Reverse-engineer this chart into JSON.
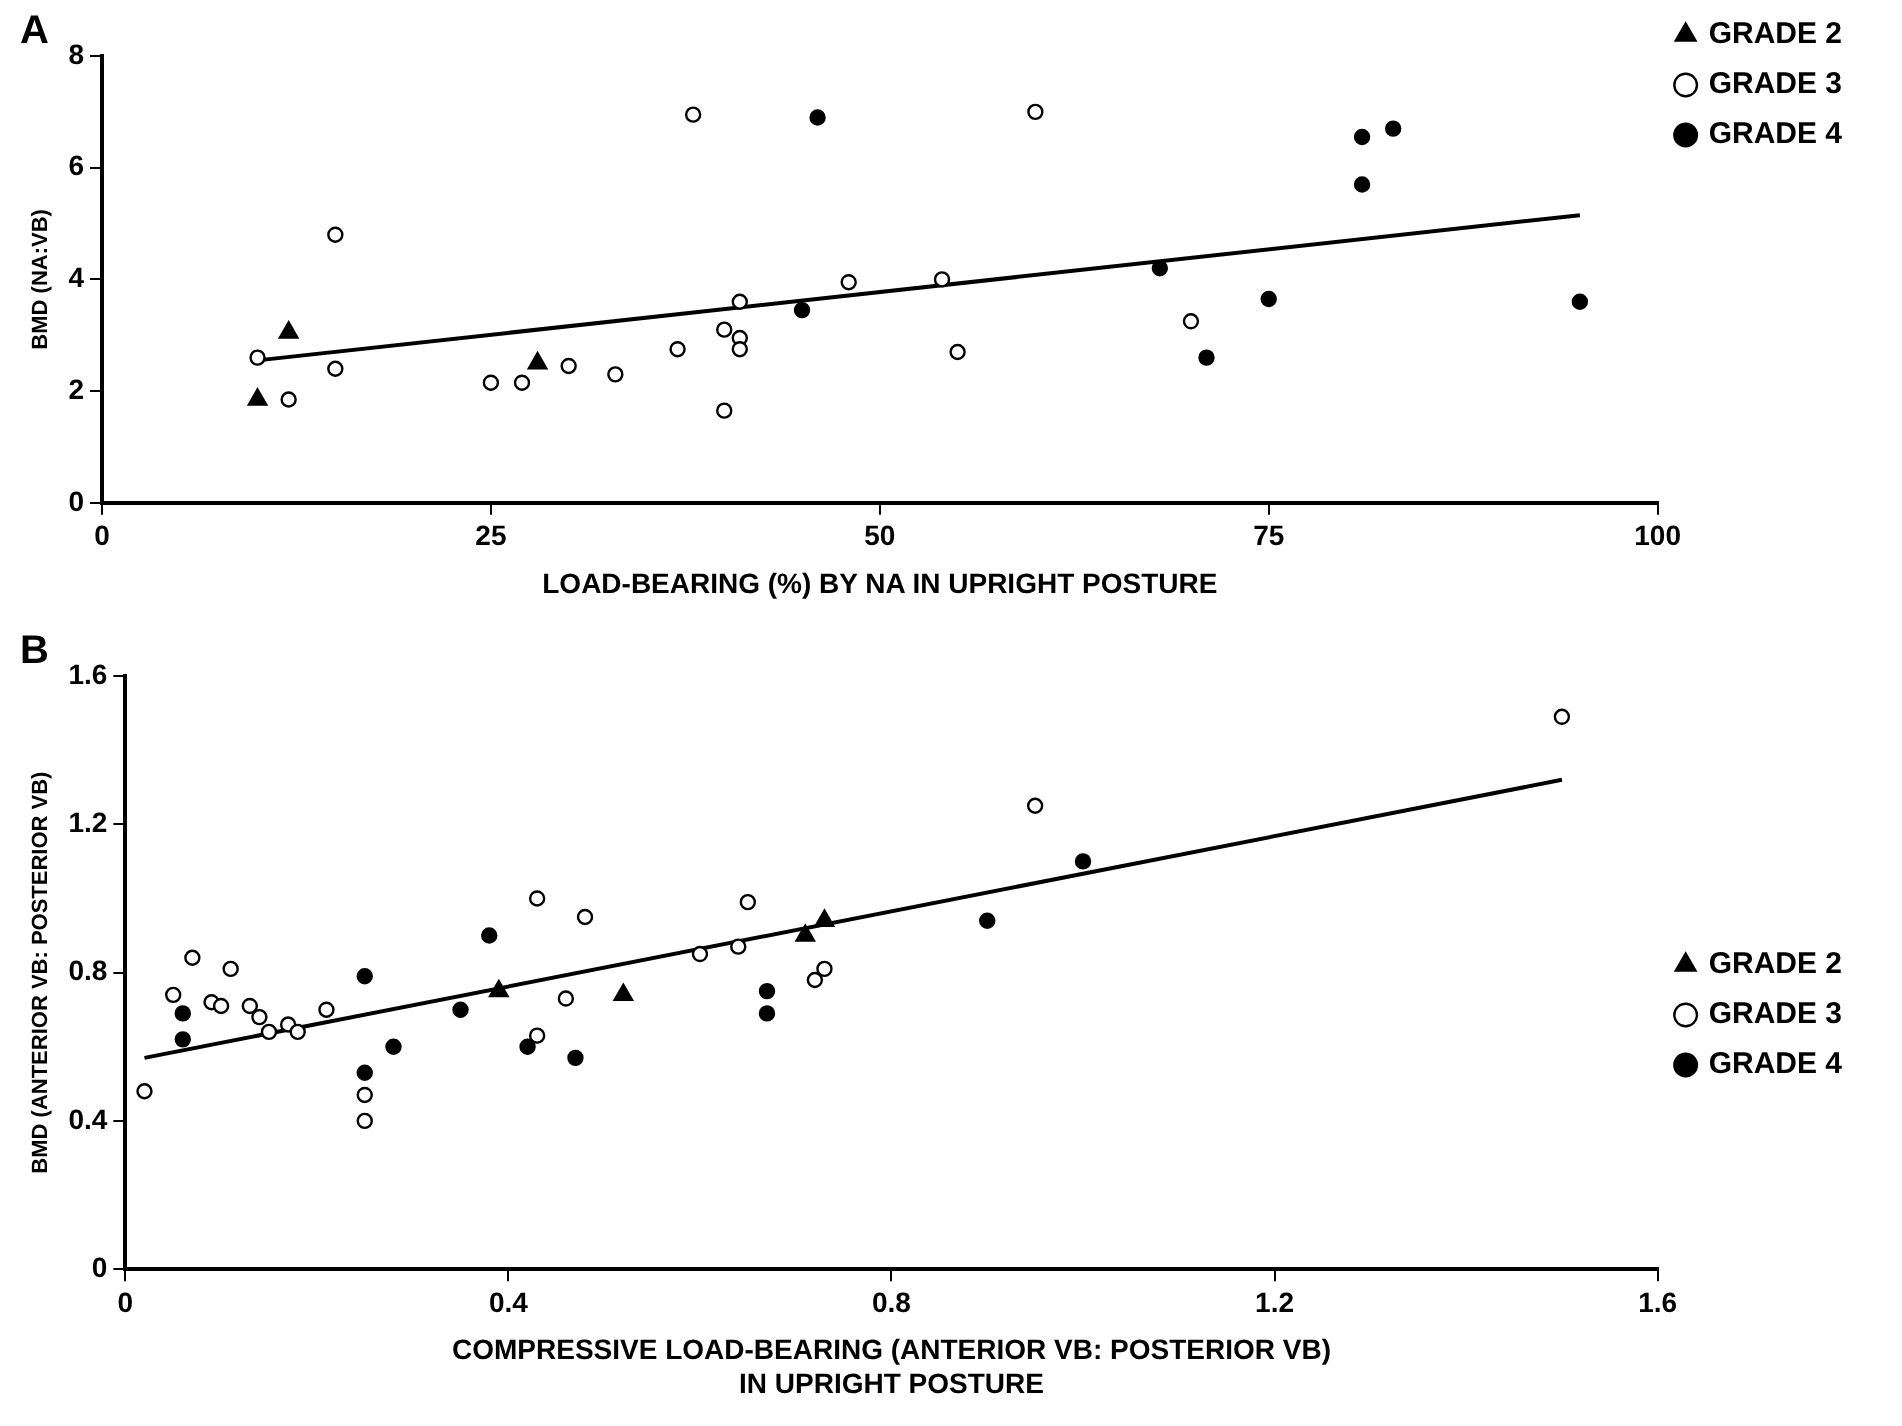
{
  "chart_data": [
    {
      "type": "scatter",
      "title": "A",
      "xlabel": "LOAD-BEARING (%) BY NA IN UPRIGHT POSTURE",
      "ylabel": "BMD (NA:VB)",
      "xlim": [
        0,
        100
      ],
      "xticks": [
        0,
        25,
        50,
        75,
        100
      ],
      "ylim": [
        0,
        8
      ],
      "yticks": [
        0,
        2,
        4,
        6,
        8
      ],
      "grid": false,
      "legend": "top right",
      "series": [
        {
          "name": "GRADE 2",
          "color": "#000000",
          "marker": "triangle",
          "x": [
            10,
            12,
            28
          ],
          "values": [
            1.85,
            3.05,
            2.5
          ]
        },
        {
          "name": "GRADE 3",
          "color": "#ffffff",
          "marker": "circle",
          "x": [
            10,
            12,
            15,
            15,
            25,
            27,
            30,
            33,
            37,
            38,
            40,
            40,
            41,
            41,
            41,
            48,
            54,
            55,
            60,
            70
          ],
          "values": [
            2.6,
            1.85,
            4.8,
            2.4,
            2.15,
            2.15,
            2.45,
            2.3,
            2.75,
            6.95,
            1.65,
            3.1,
            2.95,
            2.75,
            3.6,
            3.95,
            4.0,
            2.7,
            7.0,
            3.25
          ]
        },
        {
          "name": "GRADE 4",
          "color": "#000000",
          "marker": "circle",
          "x": [
            45,
            46,
            68,
            71,
            75,
            81,
            81,
            83,
            95
          ],
          "values": [
            3.45,
            6.9,
            4.2,
            2.6,
            3.65,
            6.55,
            5.7,
            6.7,
            3.6
          ]
        },
        {
          "type": "line",
          "color": "#000000",
          "marker": "none",
          "x": [
            10,
            95
          ],
          "values": [
            2.55,
            5.15
          ]
        }
      ]
    },
    {
      "type": "scatter",
      "title": "B",
      "xlabel": "COMPRESSIVE LOAD-BEARING (ANTERIOR VB: POSTERIOR VB)\nIN UPRIGHT POSTURE",
      "ylabel": "BMD (ANTERIOR VB: POSTERIOR VB)",
      "xlim": [
        0,
        1.6
      ],
      "xticks": [
        0,
        0.4,
        0.8,
        1.2,
        1.6
      ],
      "ylim": [
        0,
        1.6
      ],
      "yticks": [
        0,
        0.4,
        0.8,
        1.2,
        1.6
      ],
      "grid": false,
      "legend": "right",
      "series": [
        {
          "name": "GRADE 2",
          "color": "#000000",
          "marker": "triangle",
          "x": [
            0.39,
            0.52,
            0.71,
            0.73
          ],
          "values": [
            0.75,
            0.74,
            0.9,
            0.94
          ]
        },
        {
          "name": "GRADE 3",
          "color": "#ffffff",
          "marker": "circle",
          "x": [
            0.02,
            0.05,
            0.07,
            0.09,
            0.1,
            0.11,
            0.13,
            0.14,
            0.15,
            0.17,
            0.18,
            0.21,
            0.25,
            0.25,
            0.43,
            0.43,
            0.46,
            0.48,
            0.6,
            0.64,
            0.65,
            0.72,
            0.73,
            0.95,
            1.5
          ],
          "values": [
            0.48,
            0.74,
            0.84,
            0.72,
            0.71,
            0.81,
            0.71,
            0.68,
            0.64,
            0.66,
            0.64,
            0.7,
            0.47,
            0.4,
            1.0,
            0.63,
            0.73,
            0.95,
            0.85,
            0.87,
            0.99,
            0.78,
            0.81,
            1.25,
            1.49
          ]
        },
        {
          "name": "GRADE 4",
          "color": "#000000",
          "marker": "circle",
          "x": [
            0.06,
            0.06,
            0.25,
            0.25,
            0.28,
            0.35,
            0.38,
            0.42,
            0.47,
            0.67,
            0.67,
            0.9,
            1.0
          ],
          "values": [
            0.69,
            0.62,
            0.79,
            0.53,
            0.6,
            0.7,
            0.9,
            0.6,
            0.57,
            0.75,
            0.69,
            0.94,
            1.1
          ]
        },
        {
          "type": "line",
          "color": "#000000",
          "marker": "none",
          "x": [
            0.02,
            1.5
          ],
          "values": [
            0.57,
            1.32
          ]
        }
      ]
    }
  ]
}
